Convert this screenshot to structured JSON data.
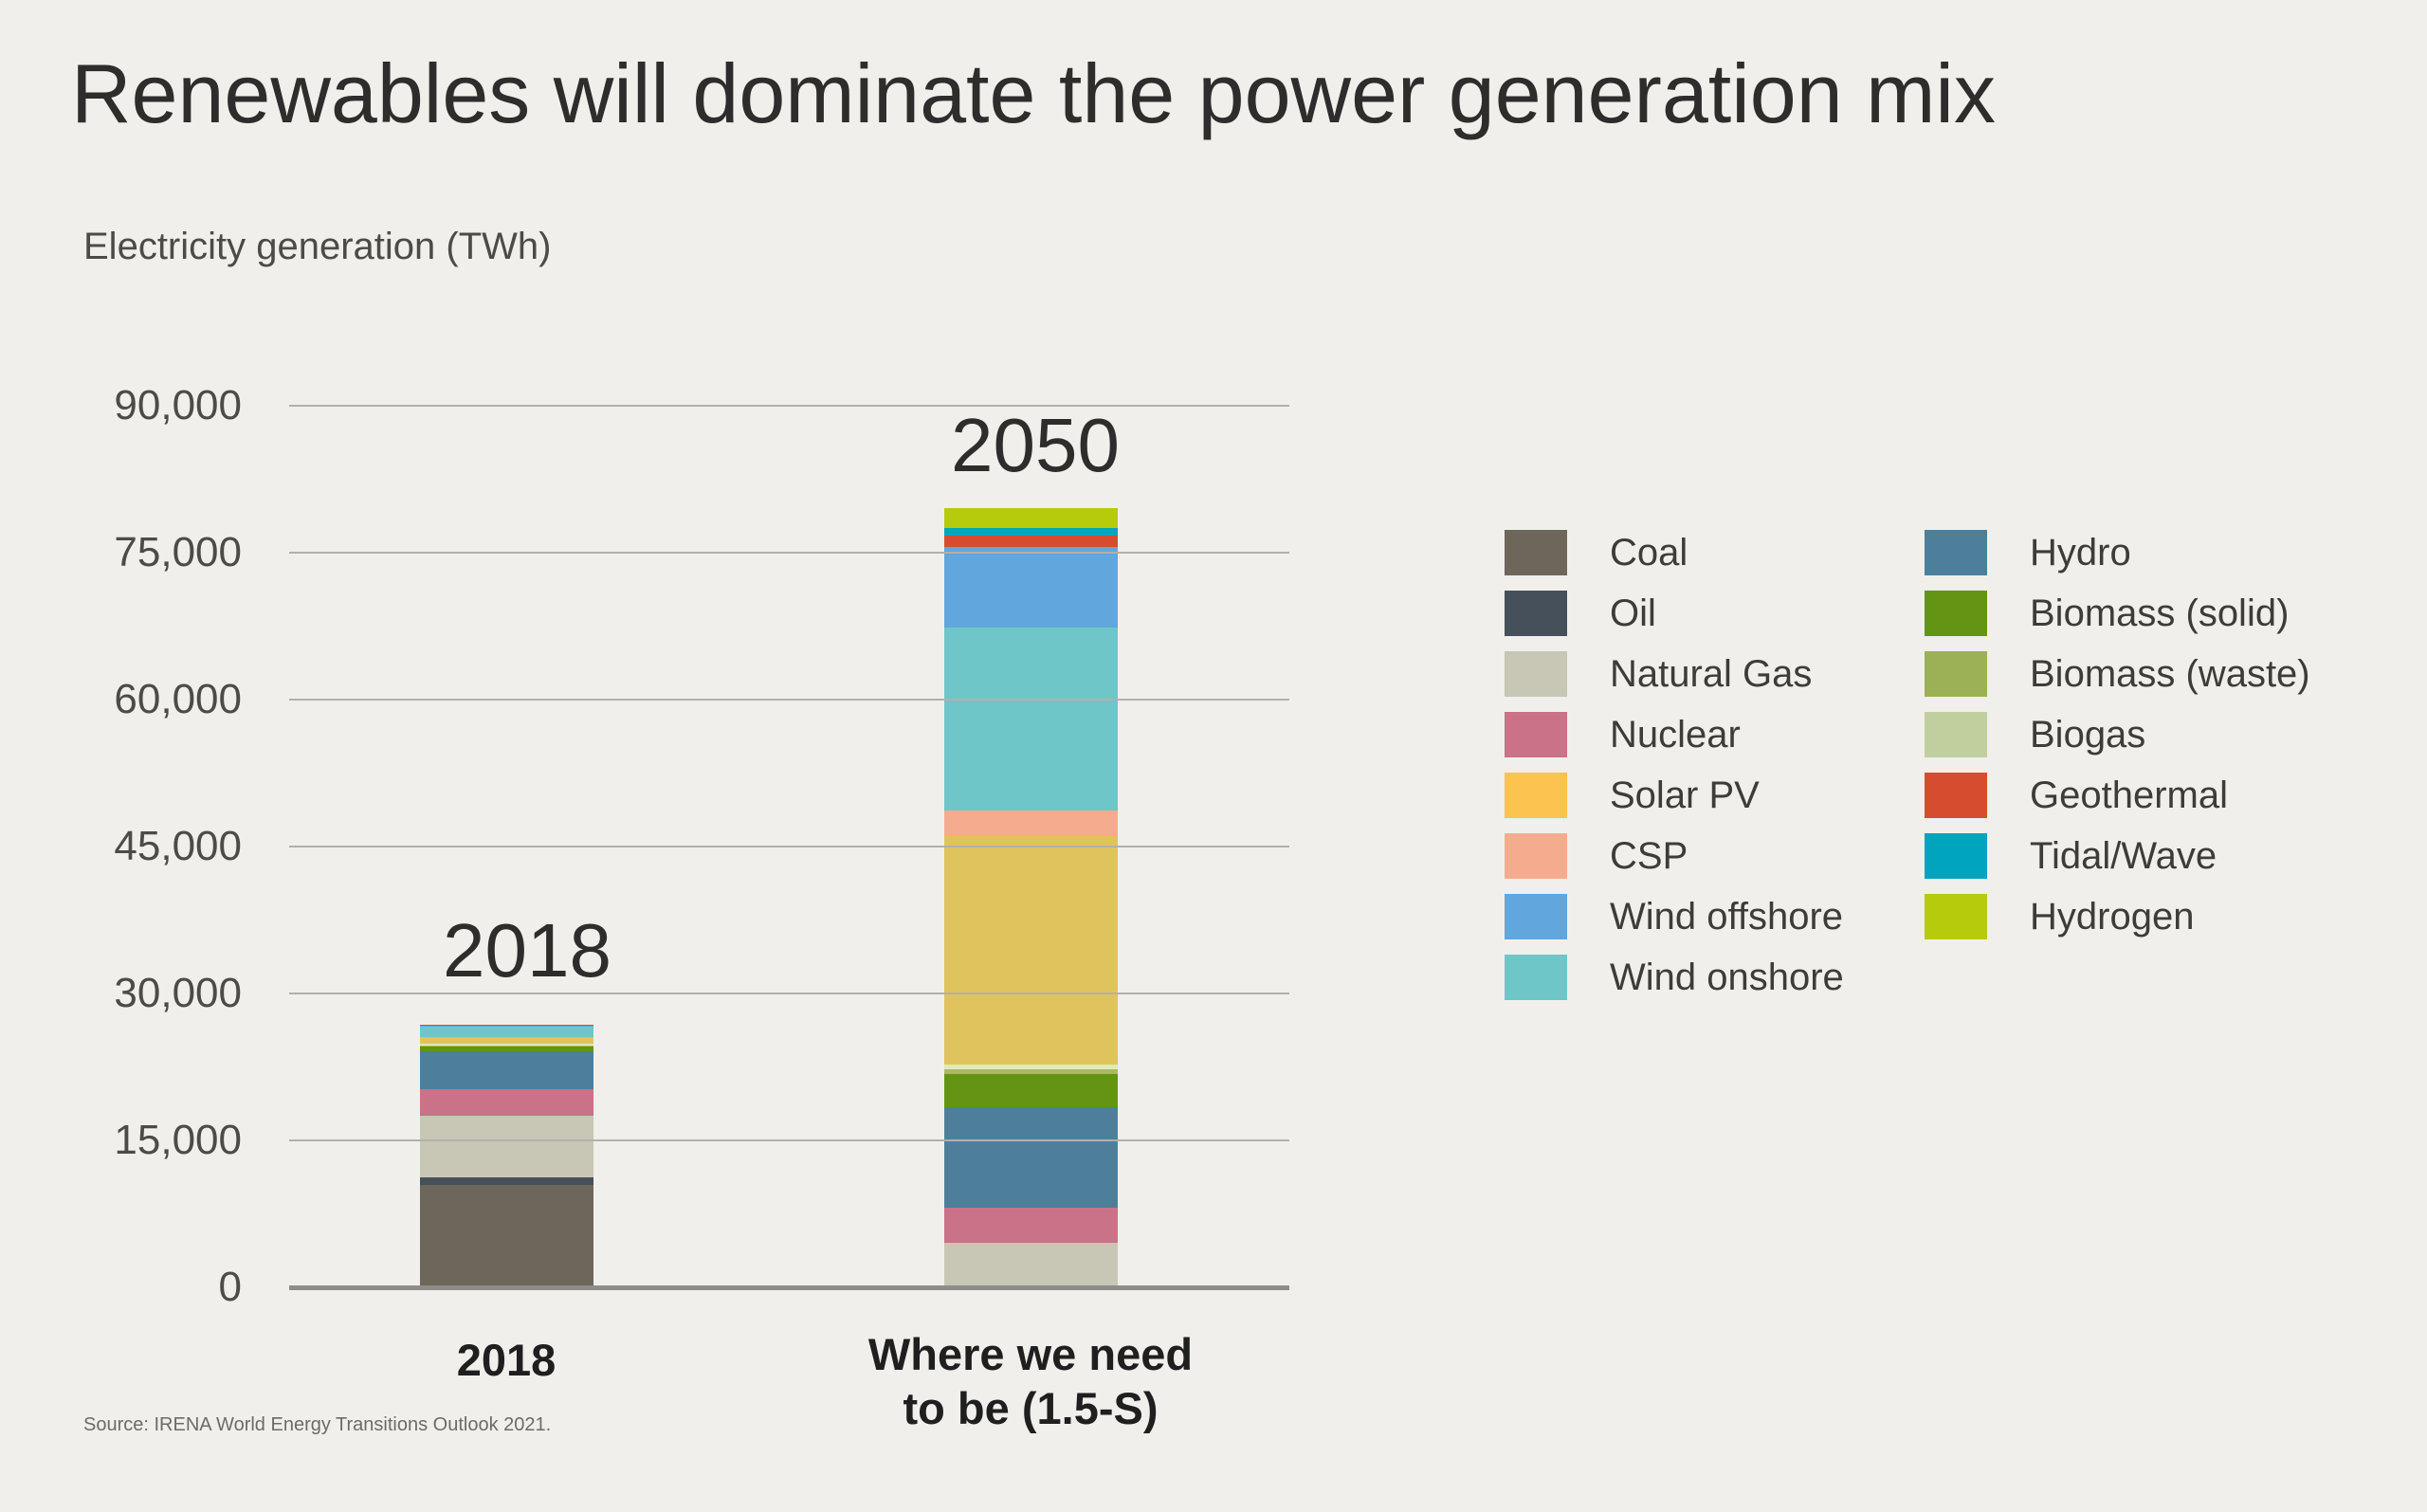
{
  "title": "Renewables will dominate the power generation mix",
  "subtitle": "Electricity generation (TWh)",
  "source": "Source: IRENA World Energy Transitions Outlook 2021.",
  "annotations": {
    "left_year": "2018",
    "right_year": "2050"
  },
  "x_labels": {
    "first": "2018",
    "second_line1": "Where we need",
    "second_line2": "to be (1.5-S)"
  },
  "y_axis": {
    "max": 90000,
    "ticks": [
      {
        "label": "90,000",
        "value": 90000
      },
      {
        "label": "75,000",
        "value": 75000
      },
      {
        "label": "60,000",
        "value": 60000
      },
      {
        "label": "45,000",
        "value": 45000
      },
      {
        "label": "30,000",
        "value": 30000
      },
      {
        "label": "15,000",
        "value": 15000
      },
      {
        "label": "0",
        "value": 0
      }
    ]
  },
  "chart_data": {
    "type": "bar",
    "stacked": true,
    "title": "Renewables will dominate the power generation mix",
    "ylabel": "Electricity generation (TWh)",
    "xlabel": "",
    "ylim": [
      0,
      90000
    ],
    "grid": true,
    "legend_position": "right",
    "categories": [
      "2018",
      "Where we need to be (1.5-S)"
    ],
    "series": [
      {
        "name": "Coal",
        "color": "#6d665b",
        "values": [
          10400,
          0
        ]
      },
      {
        "name": "Oil",
        "color": "#46505a",
        "values": [
          700,
          0
        ]
      },
      {
        "name": "Natural Gas",
        "color": "#c8c6b4",
        "values": [
          6300,
          4500
        ]
      },
      {
        "name": "Nuclear",
        "color": "#ca7287",
        "values": [
          2700,
          3500
        ]
      },
      {
        "name": "Hydro",
        "color": "#4d7f9b",
        "values": [
          3900,
          10300
        ]
      },
      {
        "name": "Biomass (solid)",
        "color": "#649414",
        "values": [
          500,
          3400
        ]
      },
      {
        "name": "Biomass (waste)",
        "color": "#a9bb5e",
        "legend_color": "#9cb156",
        "values": [
          130,
          480
        ]
      },
      {
        "name": "Biogas",
        "color": "#e0e9bc",
        "legend_color": "#c1cf9e",
        "values": [
          130,
          480
        ]
      },
      {
        "name": "Solar PV",
        "color": "#dfc45e",
        "legend_color": "#fcc351",
        "values": [
          650,
          23300
        ]
      },
      {
        "name": "CSP",
        "color": "#f5ac8e",
        "values": [
          10,
          2600
        ]
      },
      {
        "name": "Wind onshore",
        "color": "#6fc6c9",
        "values": [
          1150,
          18700
        ]
      },
      {
        "name": "Wind offshore",
        "color": "#61a6dc",
        "values": [
          70,
          8200
        ]
      },
      {
        "name": "Geothermal",
        "color": "#d54d2e",
        "values": [
          90,
          1150
        ]
      },
      {
        "name": "Tidal/Wave",
        "color": "#00a4bd",
        "values": [
          5,
          860
        ]
      },
      {
        "name": "Hydrogen",
        "color": "#b5cb0b",
        "values": [
          0,
          2000
        ]
      }
    ]
  },
  "legend": {
    "columns": [
      [
        "Coal",
        "Oil",
        "Natural Gas",
        "Nuclear",
        "Solar PV",
        "CSP",
        "Wind offshore",
        "Wind onshore"
      ],
      [
        "Hydro",
        "Biomass (solid)",
        "Biomass (waste)",
        "Biogas",
        "Geothermal",
        "Tidal/Wave",
        "Hydrogen"
      ]
    ]
  },
  "colors": {
    "background": "#f0efeb",
    "gridline": "#b2b0ad",
    "axis": "#8f8d89",
    "title_text": "#2e2d2b",
    "label_text": "#4c4b47",
    "source_text": "#6c6b67"
  }
}
